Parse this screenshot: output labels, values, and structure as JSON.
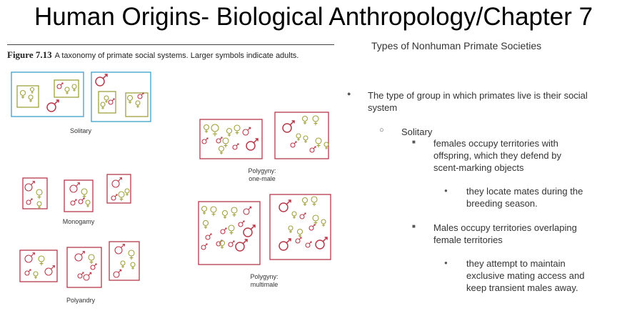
{
  "title": "Human Origins- Biological Anthropology/Chapter 7",
  "figure": {
    "number": "Figure 7.13",
    "caption": "A taxonomy of primate social systems. Larger symbols indicate adults.",
    "labels": {
      "solitary": "Solitary",
      "monogamy": "Monogamy",
      "polyandry": "Polyandry",
      "polygyny_one_male_1": "Polygyny:",
      "polygyny_one_male_2": "one-male",
      "polygyny_multimale_1": "Polygyny:",
      "polygyny_multimale_2": "multimale"
    }
  },
  "subtitle": "Types of Nonhuman Primate Societies",
  "bullets": {
    "b1": "The type of group in which  primates live is their social system",
    "b2": "Solitary",
    "b3": "females occupy territories with offspring, which they defend by scent-marking objects",
    "b4": "they locate mates during the breeding season.",
    "b5": "Males occupy territories overlaping female territories",
    "b6": "they attempt to maintain exclusive mating access and keep transient males away."
  },
  "markers": {
    "level1": "●",
    "level2": "○",
    "level3": "■",
    "level4": "●"
  },
  "colors": {
    "male": "#b53a4a",
    "female": "#a0a040",
    "solitary_box": "#3aa0cc",
    "group_box": "#b53a4a"
  }
}
